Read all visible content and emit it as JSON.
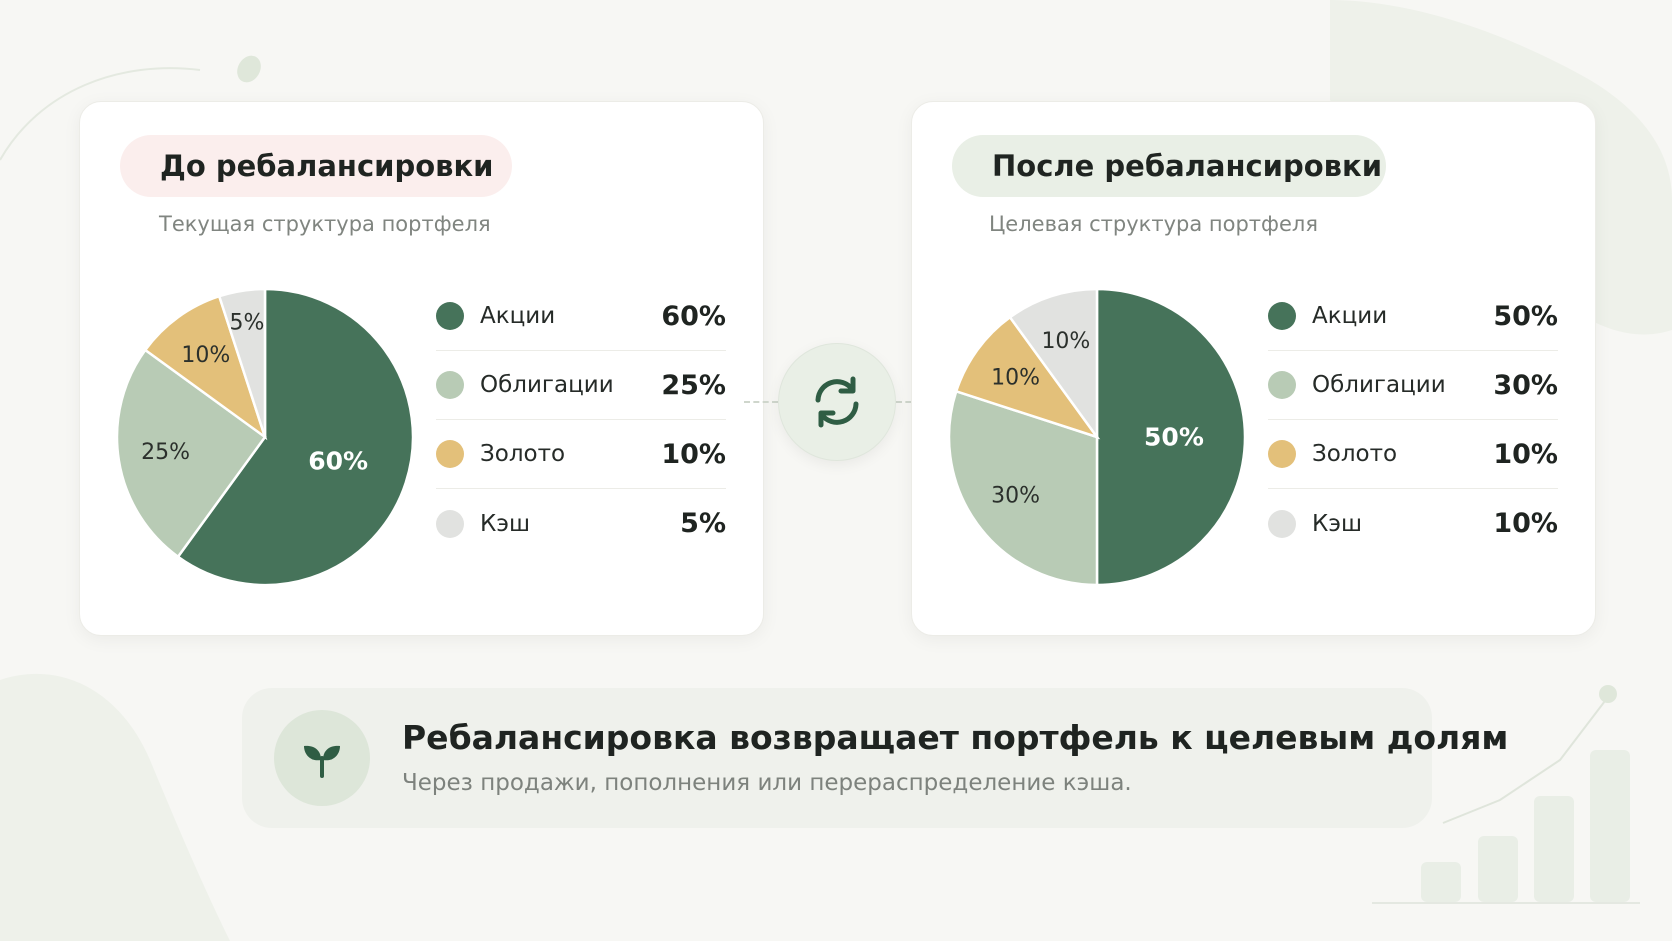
{
  "colors": {
    "stocks": "#46735a",
    "bonds": "#b8cbb5",
    "gold": "#e3c07a",
    "cash": "#e1e2e0",
    "accent": "#2f5d44"
  },
  "before": {
    "title": "До  ребалансировки",
    "subtitle": "Текущая структура портфеля"
  },
  "after": {
    "title": "После ребалансировки",
    "subtitle": "Целевая структура портфеля"
  },
  "chart_data": [
    {
      "type": "pie",
      "title": "До  ребалансировки",
      "subtitle": "Текущая структура портфеля",
      "categories": [
        "Акции",
        "Облигации",
        "Золото",
        "Кэш"
      ],
      "values": [
        60,
        25,
        10,
        5
      ],
      "labels": [
        "60%",
        "25%",
        "10%",
        "5%"
      ],
      "legend_placement": "right"
    },
    {
      "type": "pie",
      "title": "После ребалансировки",
      "subtitle": "Целевая структура портфеля",
      "categories": [
        "Акции",
        "Облигации",
        "Золото",
        "Кэш"
      ],
      "values": [
        50,
        30,
        10,
        10
      ],
      "labels": [
        "50%",
        "30%",
        "10%",
        "10%"
      ],
      "legend_placement": "right"
    }
  ],
  "sync_icon": "sync-arrows-icon",
  "banner": {
    "icon": "sprout-icon",
    "title": "Ребалансировка возвращает портфель к целевым долям",
    "subtitle": "Через продажи, пополнения или перераспределение кэша."
  }
}
